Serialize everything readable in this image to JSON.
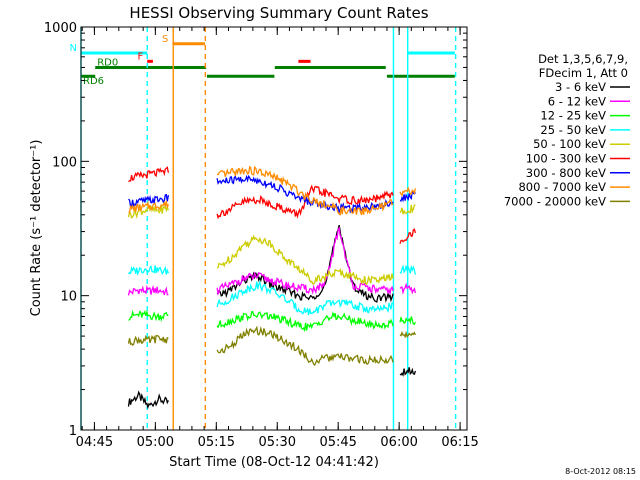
{
  "chart_data": {
    "type": "line",
    "title": "HESSI Observing Summary Count Rates",
    "xlabel": "Start Time (08-Oct-12 04:41:42)",
    "ylabel": "Count Rate (s⁻¹ detector⁻¹)",
    "yscale": "log",
    "ylim": [
      1,
      1000
    ],
    "xlim_minutes": [
      0,
      95
    ],
    "x_unit": "minutes after 04:41:42",
    "x_ticks": [
      {
        "label": "04:45",
        "minute": 3.3
      },
      {
        "label": "05:00",
        "minute": 18.3
      },
      {
        "label": "05:15",
        "minute": 33.3
      },
      {
        "label": "05:30",
        "minute": 48.3
      },
      {
        "label": "05:45",
        "minute": 63.3
      },
      {
        "label": "06:00",
        "minute": 78.3
      },
      {
        "label": "06:15",
        "minute": 93.3
      }
    ],
    "y_ticks": [
      {
        "label": "1",
        "value": 1
      },
      {
        "label": "10",
        "value": 10
      },
      {
        "label": "100",
        "value": 100
      },
      {
        "label": "1000",
        "value": 1000
      }
    ],
    "legend_header": [
      "Det 1,3,5,6,7,9,",
      "FDecim 1, Att 0"
    ],
    "segments": [
      [
        11.7,
        21.5
      ],
      [
        33.5,
        76.8
      ],
      [
        78.5,
        82.3
      ]
    ],
    "series": [
      {
        "name": "3 - 6 keV",
        "color": "#000000",
        "seg_values": [
          [
            1.6,
            1.8,
            1.5,
            1.7,
            1.6
          ],
          [
            10,
            11,
            13,
            14,
            12,
            11,
            10,
            9.5,
            12,
            34,
            12,
            10,
            9.5,
            10
          ],
          [
            2.7,
            2.8,
            2.7
          ]
        ]
      },
      {
        "name": "6 - 12 keV",
        "color": "#ff00ff",
        "seg_values": [
          [
            10.5,
            11,
            10.8,
            11,
            10.5
          ],
          [
            11,
            12,
            13.5,
            14,
            13,
            12,
            11.5,
            11,
            12,
            32,
            12,
            11.5,
            11,
            11
          ],
          [
            11,
            11.5,
            11
          ]
        ]
      },
      {
        "name": "12 - 25 keV",
        "color": "#00ff00",
        "seg_values": [
          [
            7,
            7.2,
            7.1,
            7,
            7.2
          ],
          [
            6,
            6.5,
            7,
            7.2,
            7,
            6.5,
            6,
            5.8,
            6.8,
            7,
            6.6,
            6.2,
            6,
            6.2
          ],
          [
            6.5,
            6.8,
            6.5
          ]
        ]
      },
      {
        "name": "25 - 50 keV",
        "color": "#00ffff",
        "seg_values": [
          [
            15,
            15.5,
            16,
            15.5,
            15
          ],
          [
            8.5,
            9.5,
            11,
            12,
            11,
            9.5,
            8,
            7.5,
            8.5,
            9,
            8.5,
            8,
            7.8,
            8.5
          ],
          [
            15,
            16,
            15
          ]
        ]
      },
      {
        "name": "50 - 100 keV",
        "color": "#cccc00",
        "seg_values": [
          [
            40,
            42,
            44,
            43,
            45
          ],
          [
            16,
            19,
            24,
            27,
            24,
            19,
            16,
            13,
            14,
            15,
            14,
            13,
            13,
            14
          ],
          [
            42,
            44,
            45
          ]
        ]
      },
      {
        "name": "100 - 300 keV",
        "color": "#ff0000",
        "seg_values": [
          [
            75,
            77,
            80,
            82,
            85
          ],
          [
            40,
            44,
            50,
            52,
            48,
            44,
            40,
            62,
            58,
            53,
            51,
            51,
            53,
            58
          ],
          [
            25,
            28,
            30
          ]
        ]
      },
      {
        "name": "300 - 800 keV",
        "color": "#0000ff",
        "seg_values": [
          [
            49,
            50,
            51,
            52,
            53
          ],
          [
            70,
            72,
            74,
            72,
            67,
            60,
            53,
            50,
            47,
            45,
            45,
            46,
            47,
            50
          ],
          [
            52,
            55,
            58
          ]
        ]
      },
      {
        "name": "800 - 7000 keV",
        "color": "#ff8c00",
        "seg_values": [
          [
            44,
            45,
            46,
            47,
            48
          ],
          [
            78,
            82,
            86,
            84,
            78,
            70,
            60,
            52,
            48,
            43,
            42,
            43,
            45,
            50
          ],
          [
            56,
            60,
            62
          ]
        ]
      },
      {
        "name": "7000 - 20000 keV",
        "color": "#808000",
        "seg_values": [
          [
            4.5,
            4.7,
            4.6,
            4.8,
            4.7
          ],
          [
            3.8,
            4.2,
            5.2,
            5.5,
            5.2,
            4.6,
            4,
            3.2,
            3.4,
            3.5,
            3.4,
            3.3,
            3.3,
            3.4
          ],
          [
            5,
            5.2,
            5
          ]
        ]
      }
    ],
    "flags": [
      {
        "name": "S",
        "color": "#ff8c00",
        "y": 750,
        "spans": [
          [
            22.5,
            30.5
          ]
        ]
      },
      {
        "name": "N",
        "color": "#00ffff",
        "y": 640,
        "spans": [
          [
            0,
            16.3
          ],
          [
            80.5,
            92
          ]
        ]
      },
      {
        "name": "F",
        "color": "#ff0000",
        "y": 555,
        "spans": [
          [
            16.3,
            17.7
          ],
          [
            53.5,
            56.5
          ]
        ]
      },
      {
        "name": "RD0",
        "color": "#008000",
        "y": 500,
        "spans": [
          [
            3.5,
            30.8
          ],
          [
            47.7,
            75
          ]
        ]
      },
      {
        "name": "RD6",
        "color": "#008000",
        "y": 430,
        "spans": [
          [
            0,
            3.5
          ],
          [
            31,
            47.6
          ],
          [
            75.3,
            92
          ]
        ]
      }
    ],
    "vlines": [
      {
        "minute": 0,
        "color": "#00ffff",
        "dash": false
      },
      {
        "minute": 16.3,
        "color": "#00ffff",
        "dash": true
      },
      {
        "minute": 22.7,
        "color": "#ff8c00",
        "dash": false
      },
      {
        "minute": 30.6,
        "color": "#ff8c00",
        "dash": true
      },
      {
        "minute": 76.9,
        "color": "#00ffff",
        "dash": false
      },
      {
        "minute": 80.4,
        "color": "#00ffff",
        "dash": false
      },
      {
        "minute": 92.2,
        "color": "#00ffff",
        "dash": true
      }
    ],
    "timestamp": "8-Oct-2012 08:15"
  }
}
